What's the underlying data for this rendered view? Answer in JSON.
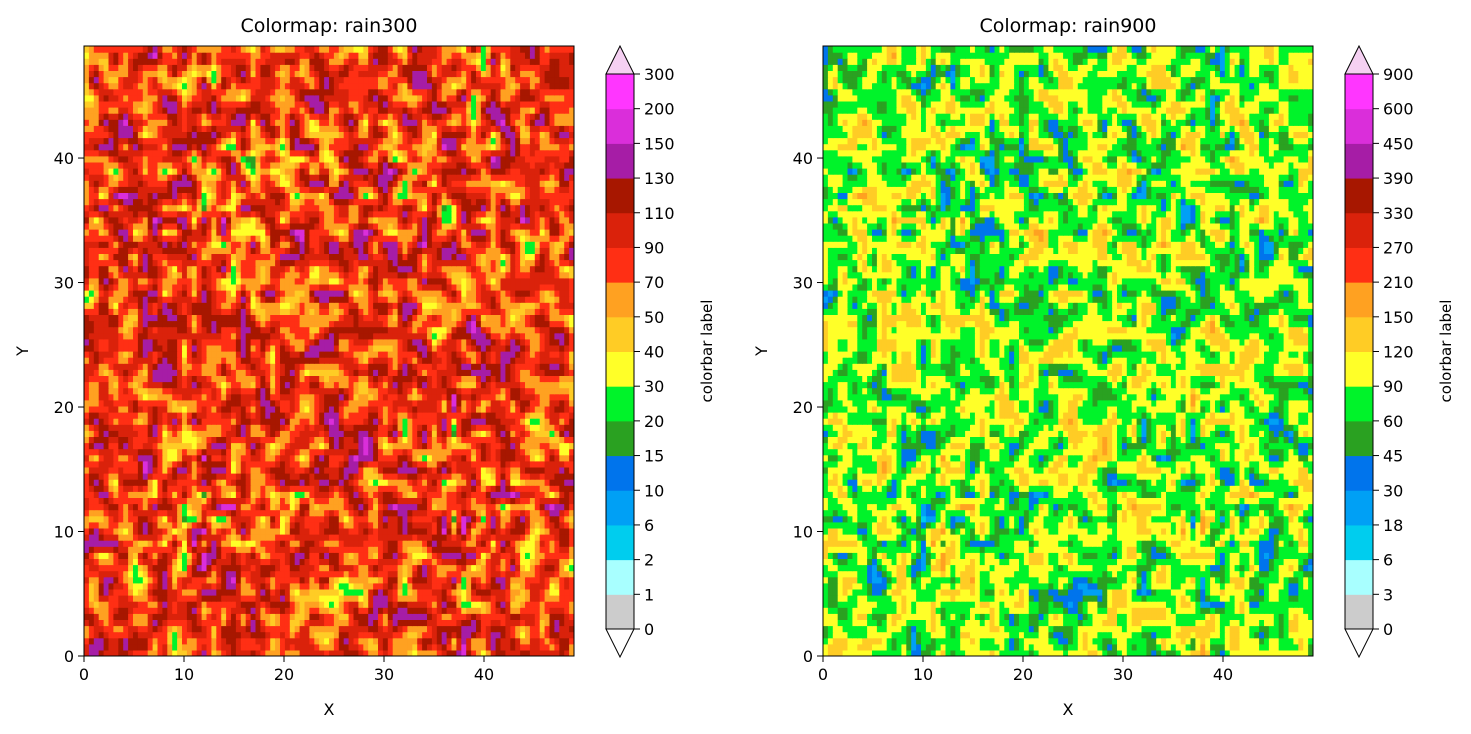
{
  "chart_data": [
    {
      "type": "heatmap",
      "title": "Colormap: rain300",
      "xlabel": "X",
      "ylabel": "Y",
      "xlim": [
        0,
        49
      ],
      "ylim": [
        0,
        49
      ],
      "xticks": [
        0,
        10,
        20,
        30,
        40
      ],
      "yticks": [
        0,
        10,
        20,
        30,
        40
      ],
      "colorbar": {
        "label": "colorbar label",
        "levels": [
          0,
          1,
          2,
          6,
          10,
          15,
          20,
          30,
          40,
          50,
          70,
          90,
          110,
          130,
          150,
          200,
          300
        ],
        "colors": [
          "#cccccc",
          "#a8ffff",
          "#00cdee",
          "#00a0f5",
          "#0074ec",
          "#2aa121",
          "#00f32a",
          "#ffff28",
          "#ffcc25",
          "#ffa121",
          "#ff2f14",
          "#da220b",
          "#a71700",
          "#a61da6",
          "#da2eda",
          "#ff36ff"
        ],
        "extend": "both",
        "under_color": "#ffffff",
        "over_color": "#f5d0f2"
      },
      "field_range": [
        15,
        160
      ]
    },
    {
      "type": "heatmap",
      "title": "Colormap: rain900",
      "xlabel": "X",
      "ylabel": "Y",
      "xlim": [
        0,
        49
      ],
      "ylim": [
        0,
        49
      ],
      "xticks": [
        0,
        10,
        20,
        30,
        40
      ],
      "yticks": [
        0,
        10,
        20,
        30,
        40
      ],
      "colorbar": {
        "label": "colorbar label",
        "levels": [
          0,
          3,
          6,
          18,
          30,
          45,
          60,
          90,
          120,
          150,
          210,
          270,
          330,
          390,
          450,
          600,
          900
        ],
        "colors": [
          "#cccccc",
          "#a8ffff",
          "#00cdee",
          "#00a0f5",
          "#0074ec",
          "#2aa121",
          "#00f32a",
          "#ffff28",
          "#ffcc25",
          "#ffa121",
          "#ff2f14",
          "#da220b",
          "#a71700",
          "#a61da6",
          "#da2eda",
          "#ff36ff"
        ],
        "extend": "both",
        "under_color": "#ffffff",
        "over_color": "#f5d0f2"
      },
      "field_range": [
        15,
        160
      ]
    }
  ]
}
